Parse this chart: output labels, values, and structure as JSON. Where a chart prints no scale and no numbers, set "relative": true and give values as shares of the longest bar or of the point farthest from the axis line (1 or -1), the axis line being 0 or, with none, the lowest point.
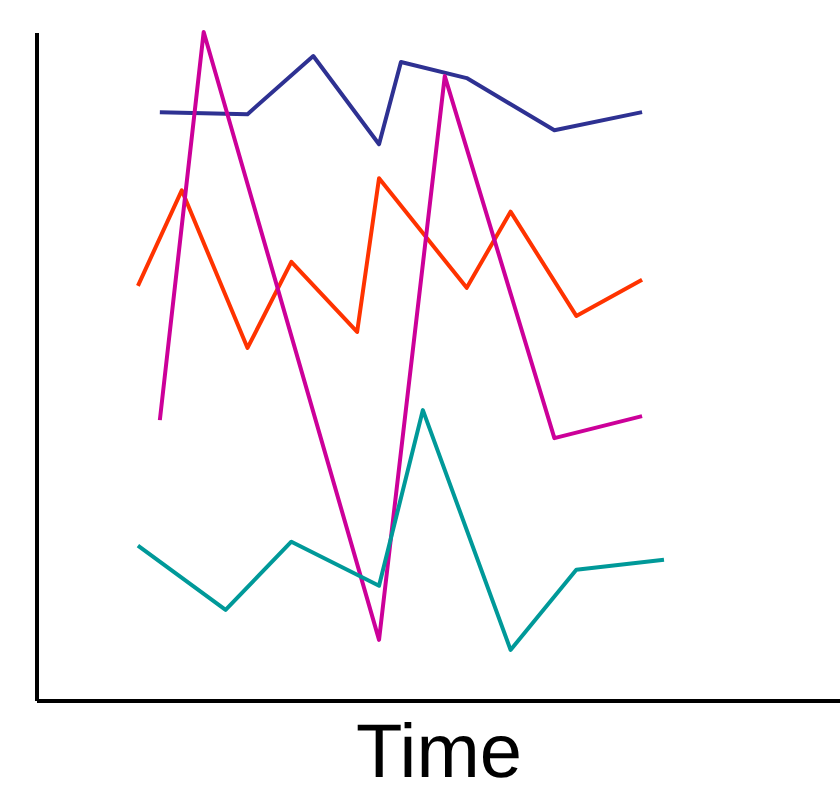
{
  "chart_data": {
    "type": "line",
    "xlabel": "Time",
    "relative": true,
    "tick_labels": false,
    "categories": [
      null,
      null,
      null,
      null,
      null,
      null,
      null,
      null,
      null,
      null,
      null,
      null,
      null,
      null,
      null,
      null,
      null,
      null,
      null,
      null,
      null,
      null,
      null,
      null,
      null
    ],
    "series": [
      {
        "color": "#2e3192",
        "values": [
          null,
          0.88,
          null,
          null,
          null,
          0.877,
          null,
          null,
          0.964,
          null,
          null,
          0.832,
          0.955,
          null,
          null,
          0.931,
          null,
          null,
          null,
          0.853,
          null,
          null,
          null,
          0.88,
          null
        ]
      },
      {
        "color": "#ff3300",
        "values": [
          0.62,
          null,
          0.763,
          null,
          null,
          0.527,
          null,
          0.656,
          null,
          null,
          0.551,
          0.781,
          null,
          null,
          null,
          0.617,
          null,
          0.731,
          null,
          null,
          0.575,
          null,
          null,
          0.629,
          null
        ]
      },
      {
        "color": "#cc0099",
        "values": [
          null,
          0.419,
          null,
          1,
          null,
          null,
          null,
          null,
          null,
          null,
          null,
          0.09,
          null,
          null,
          0.934,
          null,
          null,
          null,
          null,
          0.392,
          null,
          null,
          null,
          0.425,
          null
        ]
      },
      {
        "color": "#009999",
        "values": [
          0.231,
          null,
          null,
          null,
          0.135,
          null,
          null,
          0.237,
          null,
          null,
          null,
          0.171,
          null,
          0.434,
          null,
          null,
          null,
          0.075,
          null,
          null,
          0.195,
          null,
          null,
          null,
          0.21
        ]
      }
    ]
  }
}
